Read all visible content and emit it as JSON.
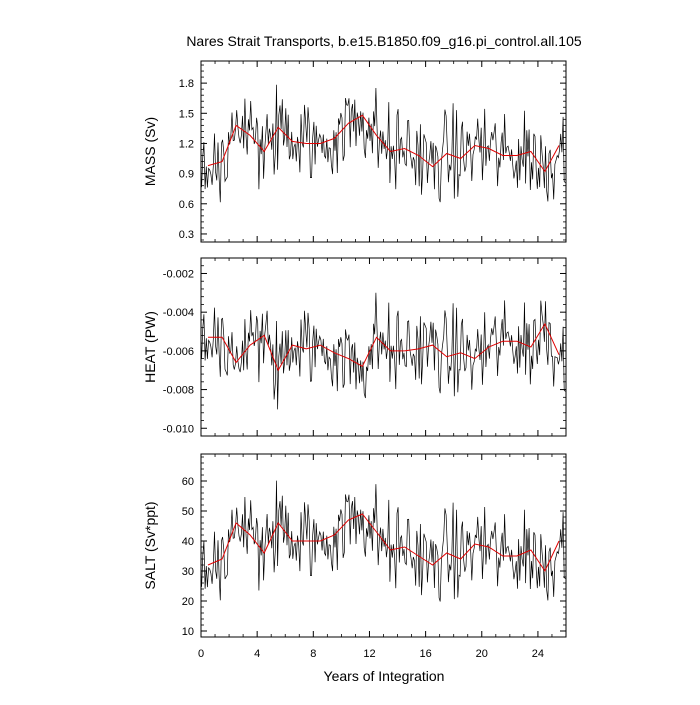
{
  "chart_data": {
    "type": "line",
    "title": "Nares Strait Transports, b.e15.B1850.f09_g16.pi_control.all.105",
    "xlabel": "Years of Integration",
    "xlim": [
      0,
      26
    ],
    "xticks": [
      0,
      4,
      8,
      12,
      16,
      20,
      24
    ],
    "xtick_labels": [
      "0",
      "4",
      "8",
      "12",
      "16",
      "20",
      "24"
    ],
    "colors": {
      "monthly": "#000000",
      "annual_mean": "#e00000"
    },
    "panels": [
      {
        "ylabel": "MASS (Sv)",
        "ylim": [
          0.22,
          2.02
        ],
        "yticks": [
          0.3,
          0.6,
          0.9,
          1.2,
          1.5,
          1.8
        ],
        "ytick_labels": [
          "0.3",
          "0.6",
          "0.9",
          "1.2",
          "1.5",
          "1.8"
        ],
        "annual_mean": {
          "x": [
            0.5,
            1.5,
            2.5,
            3.5,
            4.5,
            5.5,
            6.5,
            7.5,
            8.5,
            9.5,
            10.5,
            11.5,
            12.5,
            13.5,
            14.5,
            15.5,
            16.5,
            17.5,
            18.5,
            19.5,
            20.5,
            21.5,
            22.5,
            23.5,
            24.5,
            25.5
          ],
          "y": [
            0.98,
            1.02,
            1.38,
            1.28,
            1.12,
            1.36,
            1.22,
            1.2,
            1.2,
            1.25,
            1.4,
            1.48,
            1.28,
            1.12,
            1.15,
            1.08,
            0.97,
            1.1,
            1.05,
            1.18,
            1.15,
            1.08,
            1.08,
            1.12,
            0.92,
            1.18
          ]
        }
      },
      {
        "ylabel": "HEAT (PW)",
        "ylim": [
          -0.0104,
          -0.0012
        ],
        "yticks": [
          -0.01,
          -0.008,
          -0.006,
          -0.004,
          -0.002
        ],
        "ytick_labels": [
          "-0.010",
          "-0.008",
          "-0.006",
          "-0.004",
          "-0.002"
        ],
        "annual_mean": {
          "x": [
            0.5,
            1.5,
            2.5,
            3.5,
            4.5,
            5.5,
            6.5,
            7.5,
            8.5,
            9.5,
            10.5,
            11.5,
            12.5,
            13.5,
            14.5,
            15.5,
            16.5,
            17.5,
            18.5,
            19.5,
            20.5,
            21.5,
            22.5,
            23.5,
            24.5,
            25.5
          ],
          "y": [
            -0.0053,
            -0.0053,
            -0.0066,
            -0.0057,
            -0.0052,
            -0.007,
            -0.0057,
            -0.0059,
            -0.0057,
            -0.0061,
            -0.0064,
            -0.0068,
            -0.0053,
            -0.006,
            -0.006,
            -0.0059,
            -0.0057,
            -0.0063,
            -0.0061,
            -0.0064,
            -0.0058,
            -0.0055,
            -0.0055,
            -0.0058,
            -0.0046,
            -0.0062
          ]
        }
      },
      {
        "ylabel": "SALT (Sv*ppt)",
        "ylim": [
          8,
          69
        ],
        "yticks": [
          10,
          20,
          30,
          40,
          50,
          60
        ],
        "ytick_labels": [
          "10",
          "20",
          "30",
          "40",
          "50",
          "60"
        ],
        "annual_mean": {
          "x": [
            0.5,
            1.5,
            2.5,
            3.5,
            4.5,
            5.5,
            6.5,
            7.5,
            8.5,
            9.5,
            10.5,
            11.5,
            12.5,
            13.5,
            14.5,
            15.5,
            16.5,
            17.5,
            18.5,
            19.5,
            20.5,
            21.5,
            22.5,
            23.5,
            24.5,
            25.5
          ],
          "y": [
            32,
            34,
            46,
            42,
            36,
            46,
            40,
            40,
            40,
            42,
            47,
            49,
            43,
            37,
            38,
            35,
            32,
            36,
            34,
            39,
            38,
            35,
            35,
            37,
            30,
            40
          ]
        }
      }
    ]
  }
}
